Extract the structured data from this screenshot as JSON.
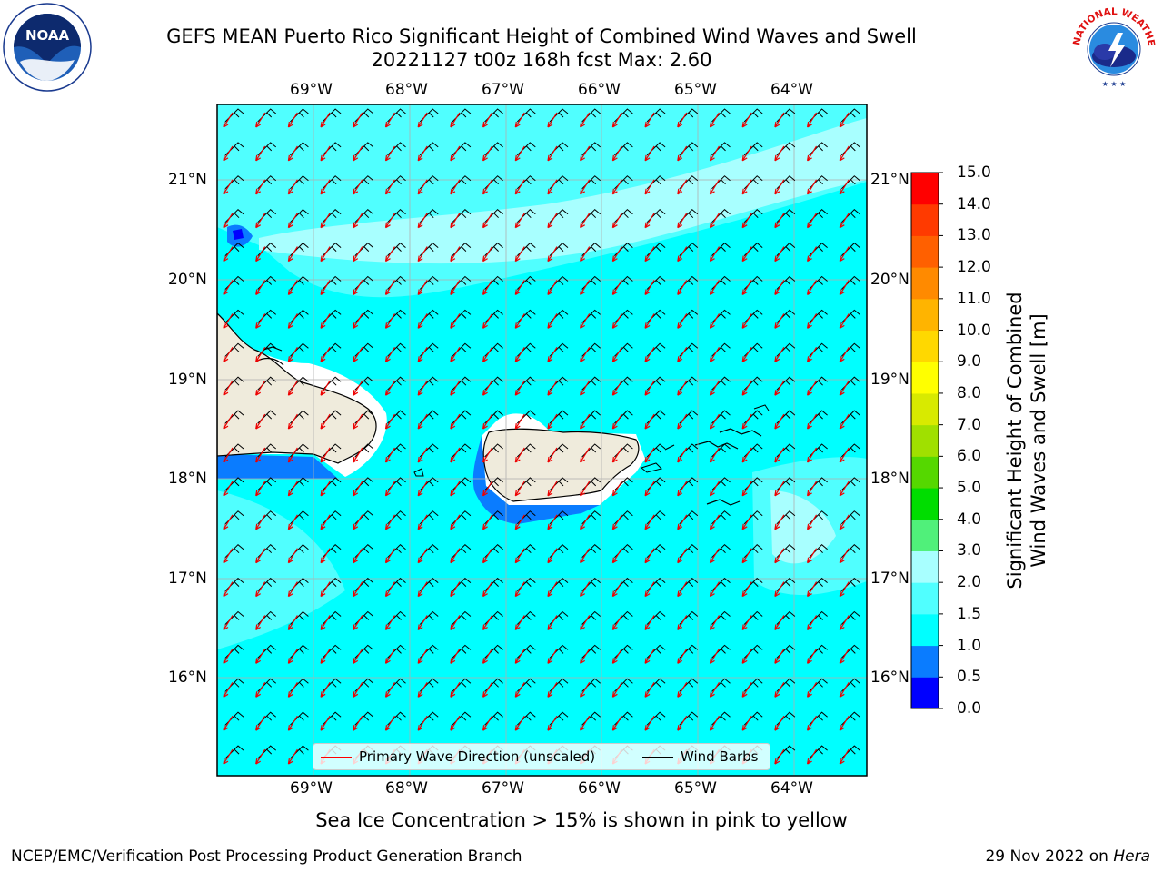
{
  "header": {
    "title_line1": "GEFS MEAN Puerto Rico Significant Height of Combined Wind Waves and Swell",
    "title_line2": "20221127 t00z 168h fcst   Max: 2.60"
  },
  "logos": {
    "left": {
      "name": "noaa-logo",
      "text": "NOAA",
      "ring_text": "NATIONAL OCEANIC AND ATMOSPHERIC ADMINISTRATION · U.S. DEPARTMENT OF COMMERCE"
    },
    "right": {
      "name": "nws-logo",
      "ring_text": "NATIONAL WEATHER SERVICE"
    }
  },
  "map": {
    "lon_ticks": [
      "69°W",
      "68°W",
      "67°W",
      "66°W",
      "65°W",
      "64°W"
    ],
    "lat_ticks": [
      "21°N",
      "20°N",
      "19°N",
      "18°N",
      "17°N",
      "16°N"
    ],
    "lon_range": [
      -70.0,
      -63.3
    ],
    "lat_range": [
      15.0,
      21.75
    ],
    "wind_direction_from": "northeast",
    "wave_direction_from": "northeast",
    "land_color": "#efebdc",
    "ocean_base_color": "#00ffff"
  },
  "colorbar": {
    "title_line1": "Significant Height of Combined",
    "title_line2": "Wind Waves and Swell [m]",
    "levels": [
      "0.0",
      "0.5",
      "1.0",
      "1.5",
      "2.0",
      "3.0",
      "4.0",
      "5.0",
      "6.0",
      "7.0",
      "8.0",
      "9.0",
      "10.0",
      "11.0",
      "12.0",
      "13.0",
      "14.0",
      "15.0"
    ],
    "colors": [
      "#0000ff",
      "#0a7cff",
      "#00ffff",
      "#50ffff",
      "#a8ffff",
      "#50f07a",
      "#00dd00",
      "#55d800",
      "#a0e000",
      "#d8ea00",
      "#ffff00",
      "#ffd800",
      "#ffb400",
      "#ff8a00",
      "#ff6000",
      "#ff3a00",
      "#ff0000"
    ]
  },
  "legend": {
    "wave_label": "Primary Wave Direction (unscaled)",
    "wave_color": "#ff0000",
    "wind_label": "Wind Barbs",
    "wind_color": "#000000"
  },
  "notes": {
    "ice": "Sea Ice Concentration > 15% is shown in pink to yellow"
  },
  "footer": {
    "left": "NCEP/EMC/Verification Post Processing Product Generation Branch",
    "right_date": "29 Nov 2022 on ",
    "right_machine": "Hera"
  }
}
